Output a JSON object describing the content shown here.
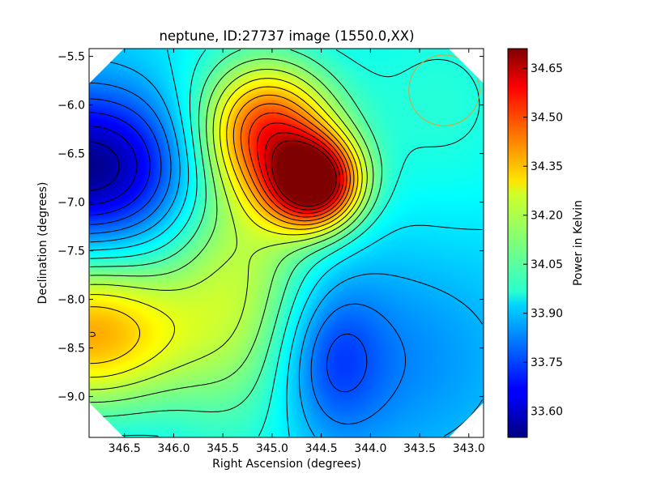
{
  "chart_data": {
    "type": "heatmap",
    "title": "neptune, ID:27737 image (1550.0,XX)",
    "xlabel": "Right Ascension (degrees)",
    "ylabel": "Declination (degrees)",
    "xlim": [
      346.86,
      342.85
    ],
    "ylim": [
      -9.42,
      -5.42
    ],
    "xticks": [
      "346.5",
      "346.0",
      "345.5",
      "345.0",
      "344.5",
      "344.0",
      "343.5",
      "343.0"
    ],
    "yticks": [
      "-5.5",
      "-6.0",
      "-6.5",
      "-7.0",
      "-7.5",
      "-8.0",
      "-8.5",
      "-9.0"
    ],
    "colorbar": {
      "label": "Power in Kelvin",
      "min": 33.52,
      "max": 34.71,
      "ticks": [
        "33.60",
        "33.75",
        "33.90",
        "34.05",
        "34.20",
        "34.35",
        "34.50",
        "34.65"
      ],
      "colormap": "jet"
    },
    "features": [
      {
        "kind": "peak",
        "ra": 344.57,
        "dec": -6.8,
        "value": 34.69
      },
      {
        "kind": "peak",
        "ra": 345.02,
        "dec": -6.25,
        "value": 34.38
      },
      {
        "kind": "peak",
        "ra": 346.86,
        "dec": -8.35,
        "value": 34.36
      },
      {
        "kind": "trough",
        "ra": 346.86,
        "dec": -6.65,
        "value": 33.53
      },
      {
        "kind": "trough",
        "ra": 344.4,
        "dec": -8.62,
        "value": 33.78
      }
    ],
    "beam_circle": {
      "ra": 343.25,
      "dec": -5.85,
      "radius_deg": 0.36,
      "color": "#e0a030"
    }
  }
}
